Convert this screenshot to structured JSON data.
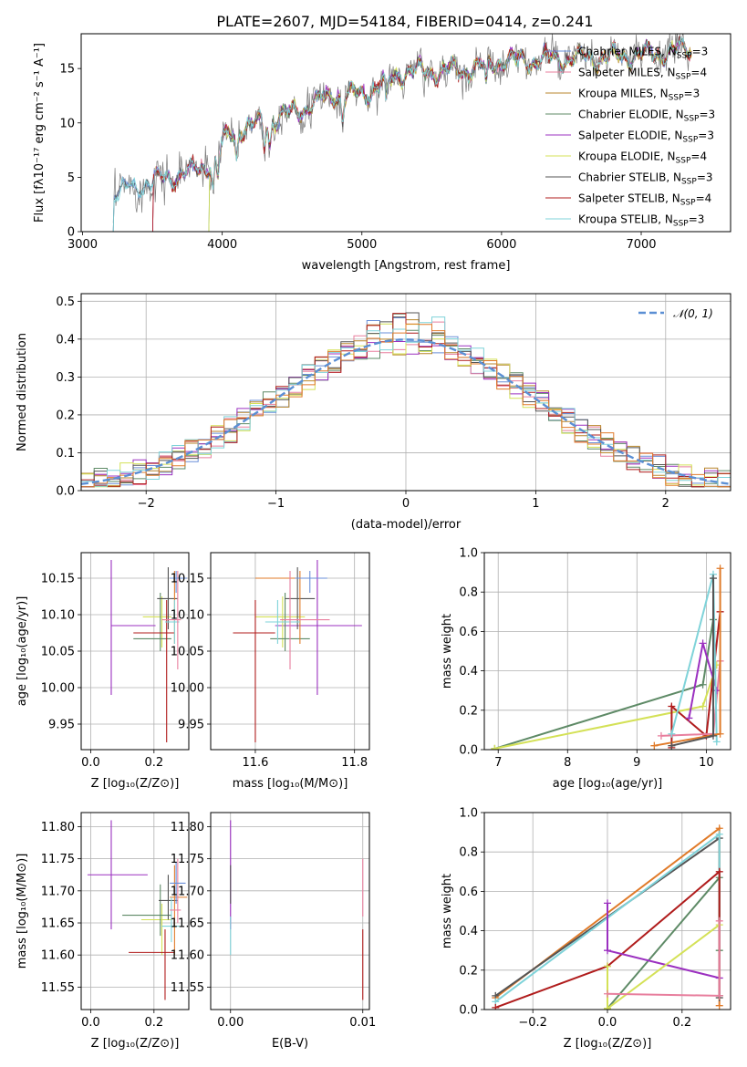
{
  "figure": {
    "title": "PLATE=2607, MJD=54184, FIBERID=0414, z=0.241"
  },
  "colors": [
    "#4e79a7",
    "#f28e2b",
    "#e15759",
    "#76b7b2",
    "#59a14f",
    "#edc948",
    "#b07aa1",
    "#ff9da7",
    "#9c755f",
    "#bab0ac"
  ],
  "chart_data": [
    {
      "id": "spectrum",
      "type": "line",
      "xlabel": "wavelength [Angstrom, rest frame]",
      "ylabel": "Flux [fλ10⁻¹⁷ erg cm⁻² s⁻¹ A⁻¹]",
      "xlim": [
        2990,
        7640
      ],
      "ylim": [
        0,
        18.2
      ],
      "xticks": [
        3000,
        4000,
        5000,
        6000,
        7000
      ],
      "yticks": [
        0,
        5,
        10,
        15
      ],
      "grid": false,
      "legend_position": "upper-right",
      "spectrum_breakpoints": [
        [
          3220,
          0
        ],
        [
          3221,
          3.5
        ],
        [
          3500,
          4.6
        ],
        [
          3800,
          5.6
        ],
        [
          3930,
          6.4
        ],
        [
          4050,
          9.0
        ],
        [
          4200,
          9.7
        ],
        [
          4500,
          10.9
        ],
        [
          4800,
          12.6
        ],
        [
          5000,
          12.6
        ],
        [
          5300,
          14.7
        ],
        [
          5700,
          14.8
        ],
        [
          6000,
          15.7
        ],
        [
          6500,
          15.9
        ],
        [
          7000,
          16.2
        ],
        [
          7350,
          16.8
        ]
      ],
      "series": [
        {
          "name": "Chabrier MILES, N_SSP=3",
          "color": "#6a8fd8"
        },
        {
          "name": "Salpeter MILES, N_SSP=4",
          "color": "#e87f9e"
        },
        {
          "name": "Kroupa MILES, N_SSP=3",
          "color": "#b8862b"
        },
        {
          "name": "Chabrier ELODIE, N_SSP=3",
          "color": "#5e8a66"
        },
        {
          "name": "Salpeter ELODIE, N_SSP=3",
          "color": "#9b30c0"
        },
        {
          "name": "Kroupa ELODIE, N_SSP=4",
          "color": "#d4e157"
        },
        {
          "name": "Chabrier STELIB, N_SSP=3",
          "color": "#555555"
        },
        {
          "name": "Salpeter STELIB, N_SSP=4",
          "color": "#b01c1c"
        },
        {
          "name": "Kroupa STELIB, N_SSP=3",
          "color": "#7fd3d9"
        }
      ]
    },
    {
      "id": "residuals",
      "type": "line",
      "xlabel": "(data-model)/error",
      "ylabel": "Normed distribution",
      "xlim": [
        -2.5,
        2.5
      ],
      "ylim": [
        0,
        0.52
      ],
      "xticks": [
        -2,
        -1,
        0,
        1,
        2
      ],
      "yticks": [
        0.0,
        0.1,
        0.2,
        0.3,
        0.4,
        0.5
      ],
      "grid": true,
      "legend_position": "upper-right",
      "reference": {
        "name": "𝒩(0, 1)",
        "color": "#5b8fd4",
        "style": "dashed"
      },
      "bin_width": 0.1
    },
    {
      "id": "age_vs_Z",
      "type": "scatter",
      "xlabel": "Z [log₁₀(Z/Z⊙)]",
      "ylabel": "age  [log₁₀(age/yr)]",
      "xlim": [
        -0.03,
        0.31
      ],
      "ylim": [
        9.915,
        10.185
      ],
      "xticks": [
        0.0,
        0.2
      ],
      "yticks": [
        9.95,
        10.0,
        10.05,
        10.1,
        10.15
      ],
      "grid": true,
      "points": [
        {
          "x": 0.065,
          "y": 10.085,
          "xl": 0.065,
          "xh": 0.205,
          "yl": 9.99,
          "yh": 10.175,
          "color": "#9b30c0"
        },
        {
          "x": 0.225,
          "y": 10.097,
          "xl": 0.165,
          "xh": 0.255,
          "yl": 10.055,
          "yh": 10.125,
          "color": "#d4e157"
        },
        {
          "x": 0.22,
          "y": 10.067,
          "xl": 0.135,
          "xh": 0.255,
          "yl": 10.05,
          "yh": 10.13,
          "color": "#5e8a66"
        },
        {
          "x": 0.245,
          "y": 10.122,
          "xl": 0.21,
          "xh": 0.275,
          "yl": 10.08,
          "yh": 10.165,
          "color": "#555555"
        },
        {
          "x": 0.24,
          "y": 10.075,
          "xl": 0.135,
          "xh": 0.265,
          "yl": 9.925,
          "yh": 10.12,
          "color": "#b01c1c"
        },
        {
          "x": 0.265,
          "y": 10.15,
          "xl": 0.25,
          "xh": 0.305,
          "yl": 10.06,
          "yh": 10.16,
          "color": "#e07b2a"
        },
        {
          "x": 0.265,
          "y": 10.09,
          "xl": 0.235,
          "xh": 0.28,
          "yl": 10.06,
          "yh": 10.12,
          "color": "#7fd3d9"
        },
        {
          "x": 0.275,
          "y": 10.093,
          "xl": 0.225,
          "xh": 0.285,
          "yl": 10.025,
          "yh": 10.16,
          "color": "#e87f9e"
        },
        {
          "x": 0.27,
          "y": 10.15,
          "xl": 0.25,
          "xh": 0.305,
          "yl": 10.13,
          "yh": 10.16,
          "color": "#6a8fd8"
        }
      ]
    },
    {
      "id": "age_vs_mass",
      "type": "scatter",
      "xlabel": "mass [log₁₀(M/M⊙)]",
      "ylabel": "",
      "xlim": [
        11.51,
        11.83
      ],
      "ylim": [
        9.915,
        10.185
      ],
      "xticks": [
        11.6,
        11.8
      ],
      "yticks": [
        9.95,
        10.0,
        10.05,
        10.1,
        10.15
      ],
      "grid": true,
      "points": [
        {
          "x": 11.725,
          "y": 10.085,
          "xl": 11.64,
          "xh": 11.815,
          "yl": 9.99,
          "yh": 10.175,
          "color": "#9b30c0"
        },
        {
          "x": 11.655,
          "y": 10.097,
          "xl": 11.6,
          "xh": 11.7,
          "yl": 10.055,
          "yh": 10.125,
          "color": "#d4e157"
        },
        {
          "x": 11.66,
          "y": 10.067,
          "xl": 11.63,
          "xh": 11.71,
          "yl": 10.05,
          "yh": 10.13,
          "color": "#5e8a66"
        },
        {
          "x": 11.685,
          "y": 10.122,
          "xl": 11.66,
          "xh": 11.72,
          "yl": 10.08,
          "yh": 10.165,
          "color": "#555555"
        },
        {
          "x": 11.6,
          "y": 10.075,
          "xl": 11.555,
          "xh": 11.64,
          "yl": 9.925,
          "yh": 10.12,
          "color": "#b01c1c"
        },
        {
          "x": 11.69,
          "y": 10.15,
          "xl": 11.6,
          "xh": 11.74,
          "yl": 10.06,
          "yh": 10.16,
          "color": "#e07b2a"
        },
        {
          "x": 11.645,
          "y": 10.09,
          "xl": 11.62,
          "xh": 11.69,
          "yl": 10.06,
          "yh": 10.12,
          "color": "#7fd3d9"
        },
        {
          "x": 11.67,
          "y": 10.093,
          "xl": 11.65,
          "xh": 11.75,
          "yl": 10.025,
          "yh": 10.16,
          "color": "#e87f9e"
        },
        {
          "x": 11.71,
          "y": 10.15,
          "xl": 11.68,
          "xh": 11.745,
          "yl": 10.13,
          "yh": 10.16,
          "color": "#6a8fd8"
        }
      ]
    },
    {
      "id": "massweight_vs_age",
      "type": "line",
      "xlabel": "age  [log₁₀(age/yr)]",
      "ylabel": "mass weight",
      "xlim": [
        6.8,
        10.35
      ],
      "ylim": [
        0,
        1
      ],
      "xticks": [
        7,
        8,
        9,
        10
      ],
      "yticks": [
        0.0,
        0.2,
        0.4,
        0.6,
        0.8,
        1.0
      ],
      "grid": true,
      "series": [
        {
          "color": "#5e8a66",
          "points": [
            [
              6.95,
              0.005
            ],
            [
              9.95,
              0.33
            ],
            [
              10.1,
              0.66
            ]
          ]
        },
        {
          "color": "#d4e157",
          "points": [
            [
              6.95,
              0.005
            ],
            [
              9.95,
              0.22
            ],
            [
              10.15,
              0.43
            ]
          ]
        },
        {
          "color": "#b01c1c",
          "points": [
            [
              9.5,
              0.01
            ],
            [
              9.5,
              0.22
            ],
            [
              10.0,
              0.07
            ],
            [
              10.2,
              0.7
            ]
          ]
        },
        {
          "color": "#e87f9e",
          "points": [
            [
              9.35,
              0.07
            ],
            [
              10.1,
              0.08
            ],
            [
              10.2,
              0.45
            ]
          ]
        },
        {
          "color": "#9b30c0",
          "points": [
            [
              9.75,
              0.16
            ],
            [
              9.95,
              0.54
            ],
            [
              10.15,
              0.3
            ]
          ]
        },
        {
          "color": "#7fd3d9",
          "points": [
            [
              9.5,
              0.08
            ],
            [
              10.1,
              0.89
            ],
            [
              10.15,
              0.04
            ]
          ]
        },
        {
          "color": "#e07b2a",
          "points": [
            [
              9.25,
              0.02
            ],
            [
              10.2,
              0.08
            ],
            [
              10.2,
              0.92
            ]
          ]
        },
        {
          "color": "#555555",
          "points": [
            [
              9.5,
              0.02
            ],
            [
              10.1,
              0.07
            ],
            [
              10.1,
              0.87
            ]
          ]
        }
      ]
    },
    {
      "id": "mass_vs_Z",
      "type": "scatter",
      "xlabel": "Z [log₁₀(Z/Z⊙)]",
      "ylabel": "mass [log₁₀(M/M⊙)]",
      "xlim": [
        -0.03,
        0.31
      ],
      "ylim": [
        11.515,
        11.822
      ],
      "xticks": [
        0.0,
        0.2
      ],
      "yticks": [
        11.55,
        11.6,
        11.65,
        11.7,
        11.75,
        11.8
      ],
      "grid": true,
      "points": [
        {
          "x": 0.065,
          "y": 11.725,
          "xl": -0.01,
          "xh": 0.18,
          "yl": 11.64,
          "yh": 11.81,
          "color": "#9b30c0"
        },
        {
          "x": 0.225,
          "y": 11.655,
          "xl": 0.16,
          "xh": 0.255,
          "yl": 11.6,
          "yh": 11.68,
          "color": "#d4e157"
        },
        {
          "x": 0.22,
          "y": 11.662,
          "xl": 0.1,
          "xh": 0.255,
          "yl": 11.63,
          "yh": 11.71,
          "color": "#5e8a66"
        },
        {
          "x": 0.245,
          "y": 11.685,
          "xl": 0.215,
          "xh": 0.275,
          "yl": 11.655,
          "yh": 11.725,
          "color": "#555555"
        },
        {
          "x": 0.235,
          "y": 11.604,
          "xl": 0.12,
          "xh": 0.265,
          "yl": 11.53,
          "yh": 11.64,
          "color": "#b01c1c"
        },
        {
          "x": 0.265,
          "y": 11.69,
          "xl": 0.25,
          "xh": 0.305,
          "yl": 11.6,
          "yh": 11.74,
          "color": "#e07b2a"
        },
        {
          "x": 0.255,
          "y": 11.645,
          "xl": 0.225,
          "xh": 0.28,
          "yl": 11.62,
          "yh": 11.69,
          "color": "#7fd3d9"
        },
        {
          "x": 0.275,
          "y": 11.67,
          "xl": 0.25,
          "xh": 0.285,
          "yl": 11.65,
          "yh": 11.75,
          "color": "#e87f9e"
        },
        {
          "x": 0.27,
          "y": 11.712,
          "xl": 0.25,
          "xh": 0.3,
          "yl": 11.68,
          "yh": 11.745,
          "color": "#6a8fd8"
        }
      ]
    },
    {
      "id": "mass_vs_EBV",
      "type": "scatter",
      "xlabel": "E(B-V)",
      "ylabel": "",
      "xlim": [
        -0.0015,
        0.0105
      ],
      "ylim": [
        11.515,
        11.822
      ],
      "xticks": [
        0.0,
        0.01
      ],
      "tick_labels": [
        "0.00",
        "0.01"
      ],
      "yticks": [
        11.55,
        11.6,
        11.65,
        11.7,
        11.75,
        11.8
      ],
      "grid": true,
      "points": [
        {
          "x": 0.0,
          "y": 11.725,
          "xl": 0.0,
          "xh": 0.0,
          "yl": 11.64,
          "yh": 11.81,
          "color": "#9b30c0"
        },
        {
          "x": 0.0,
          "y": 11.69,
          "xl": 0.0,
          "xh": 0.0,
          "yl": 11.68,
          "yh": 11.74,
          "color": "#555555"
        },
        {
          "x": 0.0,
          "y": 11.63,
          "xl": 0.0,
          "xh": 0.0,
          "yl": 11.6,
          "yh": 11.66,
          "color": "#7fd3d9"
        },
        {
          "x": 0.01,
          "y": 11.6,
          "xl": 0.01,
          "xh": 0.01,
          "yl": 11.53,
          "yh": 11.64,
          "color": "#b01c1c"
        },
        {
          "x": 0.01,
          "y": 11.7,
          "xl": 0.01,
          "xh": 0.01,
          "yl": 11.66,
          "yh": 11.75,
          "color": "#e87f9e"
        }
      ]
    },
    {
      "id": "massweight_vs_Z",
      "type": "line",
      "xlabel": "Z [log₁₀(Z/Z⊙)]",
      "ylabel": "mass weight",
      "xlim": [
        -0.33,
        0.33
      ],
      "ylim": [
        0,
        1
      ],
      "xticks": [
        -0.2,
        0.0,
        0.2
      ],
      "yticks": [
        0.0,
        0.2,
        0.4,
        0.6,
        0.8,
        1.0
      ],
      "grid": true,
      "series": [
        {
          "color": "#e07b2a",
          "points": [
            [
              -0.3,
              0.06
            ],
            [
              0.3,
              0.92
            ],
            [
              0.3,
              0.02
            ]
          ]
        },
        {
          "color": "#555555",
          "points": [
            [
              -0.3,
              0.07
            ],
            [
              0.3,
              0.87
            ],
            [
              0.3,
              0.06
            ]
          ]
        },
        {
          "color": "#7fd3d9",
          "points": [
            [
              -0.3,
              0.04
            ],
            [
              0.3,
              0.89
            ],
            [
              0.3,
              0.07
            ]
          ]
        },
        {
          "color": "#5e8a66",
          "points": [
            [
              0.0,
              0.005
            ],
            [
              0.3,
              0.67
            ],
            [
              0.3,
              0.3
            ]
          ]
        },
        {
          "color": "#b01c1c",
          "points": [
            [
              -0.3,
              0.01
            ],
            [
              0.0,
              0.22
            ],
            [
              0.3,
              0.7
            ],
            [
              0.3,
              0.07
            ]
          ]
        },
        {
          "color": "#9b30c0",
          "points": [
            [
              0.0,
              0.54
            ],
            [
              0.0,
              0.3
            ],
            [
              0.3,
              0.16
            ]
          ]
        },
        {
          "color": "#d4e157",
          "points": [
            [
              0.0,
              0.22
            ],
            [
              0.0,
              0.005
            ],
            [
              0.3,
              0.43
            ]
          ]
        },
        {
          "color": "#e87f9e",
          "points": [
            [
              0.0,
              0.08
            ],
            [
              0.3,
              0.07
            ],
            [
              0.3,
              0.45
            ]
          ]
        }
      ]
    }
  ]
}
